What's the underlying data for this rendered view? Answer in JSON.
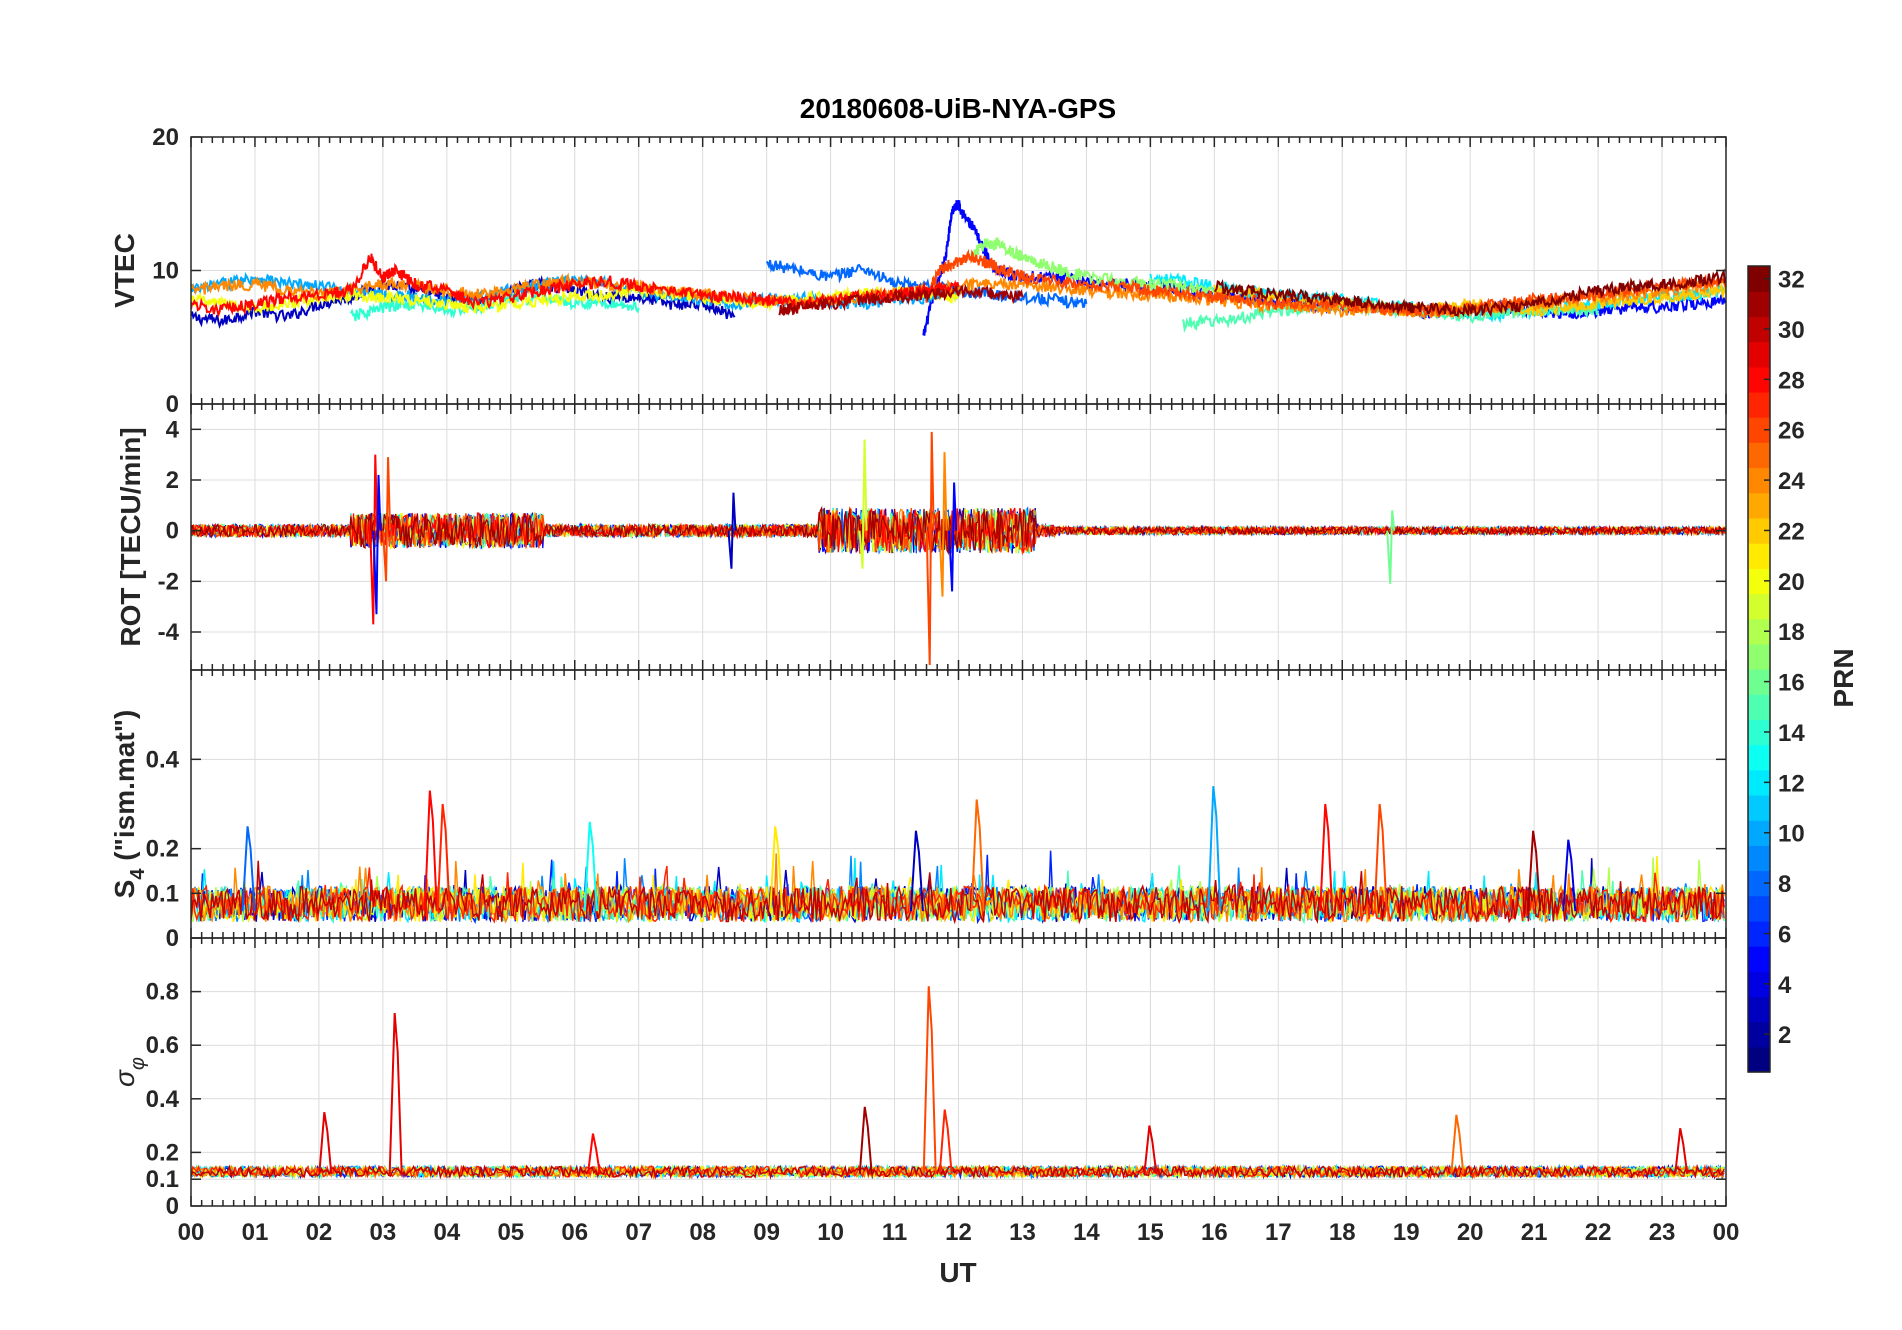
{
  "chart_data": {
    "type": "line",
    "title": "20180608-UiB-NYA-GPS",
    "xlabel": "UT",
    "x_ticks": [
      "00",
      "01",
      "02",
      "03",
      "04",
      "05",
      "06",
      "07",
      "08",
      "09",
      "10",
      "11",
      "12",
      "13",
      "14",
      "15",
      "16",
      "17",
      "18",
      "19",
      "20",
      "21",
      "22",
      "23",
      "00"
    ],
    "xlim": [
      0,
      24
    ],
    "colorbar": {
      "label": "PRN",
      "ticks": [
        "2",
        "4",
        "6",
        "8",
        "10",
        "12",
        "14",
        "16",
        "18",
        "20",
        "22",
        "24",
        "26",
        "28",
        "30",
        "32"
      ],
      "range": [
        1,
        32
      ],
      "colormap": "jet"
    },
    "panels": [
      {
        "id": "vtec",
        "ylabel": "VTEC",
        "ylim": [
          0,
          20
        ],
        "y_ticks": [
          "0",
          "10",
          "20"
        ],
        "y_tick_values": [
          0,
          10,
          20
        ],
        "series": [
          {
            "prn": 3,
            "x": [
              0,
              0.5,
              1,
              1.5,
              2,
              2.5,
              3,
              3.5,
              4,
              4.5,
              5,
              5.5,
              6,
              6.5,
              7,
              7.5,
              8,
              8.5
            ],
            "values": [
              6.5,
              6.2,
              7,
              6.5,
              7.5,
              8,
              9,
              8.5,
              8,
              7.5,
              8.5,
              9,
              8.5,
              8,
              8,
              7.5,
              7.5,
              6.5
            ]
          },
          {
            "prn": 5,
            "x": [
              11.45,
              11.6,
              11.8,
              11.9,
              12.0,
              12.1,
              12.25,
              12.4,
              12.6,
              13,
              13.5,
              14,
              14.5,
              15,
              15.5,
              16,
              16.5,
              17,
              17.5,
              18,
              18.5,
              19,
              19.5,
              20,
              20.5,
              21,
              21.5,
              22,
              22.5,
              23,
              23.5,
              24
            ],
            "values": [
              5,
              8,
              11,
              14.5,
              15,
              14,
              13,
              11.5,
              10,
              9.5,
              9.5,
              9.2,
              9,
              8.8,
              8.5,
              8.2,
              8,
              7.9,
              7.5,
              7.3,
              7.2,
              7,
              6.8,
              7,
              7.2,
              7,
              6.8,
              7,
              7.2,
              7.3,
              7.5,
              7.8
            ]
          },
          {
            "prn": 8,
            "x": [
              9,
              9.5,
              10,
              10.5,
              11,
              11.5,
              12,
              12.5,
              13,
              13.5,
              14
            ],
            "values": [
              10.5,
              10,
              9.5,
              10.2,
              9,
              8.8,
              8.5,
              8.2,
              8,
              7.8,
              7.5
            ]
          },
          {
            "prn": 10,
            "x": [
              0,
              0.5,
              1,
              1.5,
              2,
              2.5,
              3,
              3.5,
              4,
              4.5,
              5,
              5.5,
              6,
              6.5,
              7,
              7.5,
              8,
              8.5,
              9,
              9.5,
              10,
              10.5,
              11,
              11.5,
              12
            ],
            "values": [
              8.5,
              9,
              9.5,
              9,
              8.8,
              8.5,
              8.2,
              8,
              7.8,
              8,
              8.5,
              9,
              9.2,
              9,
              8.5,
              8,
              7.8,
              7.5,
              7.8,
              8,
              7.6,
              7.5,
              7.8,
              8,
              8.2
            ]
          },
          {
            "prn": 12,
            "x": [
              15,
              15.5,
              16,
              16.5,
              17,
              17.5,
              18,
              18.5,
              19,
              19.5,
              20,
              20.5,
              21,
              21.5,
              22,
              22.5,
              23,
              23.5,
              24
            ],
            "values": [
              9.5,
              9.2,
              8.8,
              8.5,
              8.2,
              8,
              7.8,
              7.5,
              7.3,
              7,
              6.8,
              6.7,
              7,
              7.2,
              7.5,
              7.8,
              8,
              8.2,
              8.5
            ]
          },
          {
            "prn": 14,
            "x": [
              2.5,
              3,
              3.5,
              4,
              4.5,
              5,
              5.5,
              6,
              6.5,
              7
            ],
            "values": [
              6.5,
              7.2,
              7.5,
              7,
              7.3,
              7.8,
              8,
              7.5,
              7.6,
              7.2
            ]
          },
          {
            "prn": 15,
            "x": [
              15.5,
              16,
              16.5,
              17,
              17.5,
              18,
              18.5,
              19,
              19.5,
              20,
              20.5,
              21,
              21.5,
              22
            ],
            "values": [
              6,
              6.2,
              6.5,
              7,
              7.2,
              7.5,
              7.2,
              7,
              6.8,
              6.5,
              6.8,
              7,
              7.2,
              7
            ]
          },
          {
            "prn": 17,
            "x": [
              12.2,
              12.4,
              12.6,
              12.8,
              13,
              13.3,
              13.6,
              14,
              14.5,
              15,
              15.5,
              16
            ],
            "values": [
              11,
              12,
              12,
              11.5,
              11,
              10.5,
              10,
              9.5,
              9.2,
              9,
              8.8,
              8.5
            ]
          },
          {
            "prn": 20,
            "x": [
              0,
              0.5,
              1,
              1.5,
              2,
              2.5,
              3,
              3.5,
              4,
              4.5,
              5,
              5.5,
              6,
              6.5,
              7,
              7.5,
              8,
              8.5,
              9,
              9.5,
              10,
              10.5,
              11,
              11.5,
              12
            ],
            "values": [
              7.8,
              7.5,
              7.2,
              7.5,
              8,
              8.2,
              8,
              7.8,
              7.5,
              7.2,
              7.5,
              7.8,
              8,
              8.2,
              8.5,
              8.3,
              8,
              7.8,
              7.5,
              7.8,
              8,
              8.2,
              8.5,
              8.3,
              8
            ]
          },
          {
            "prn": 22,
            "x": [
              16,
              16.5,
              17,
              17.5,
              18,
              18.5,
              19,
              19.5,
              20,
              20.5,
              21,
              21.5,
              22,
              22.5,
              23,
              23.5,
              24
            ],
            "values": [
              8.5,
              8.3,
              8,
              7.8,
              7.5,
              7.2,
              7,
              7.2,
              7.5,
              7.3,
              7,
              7.2,
              7.5,
              7.8,
              8,
              8.2,
              8.5
            ]
          },
          {
            "prn": 24,
            "x": [
              0,
              0.5,
              1,
              1.5,
              2,
              2.5,
              3,
              3.5,
              4,
              4.5,
              5,
              5.5,
              6,
              6.5,
              7,
              7.5,
              8,
              8.5,
              9,
              9.5,
              10,
              10.5,
              11,
              11.5,
              12,
              12.5,
              13,
              13.5,
              14,
              14.5,
              15,
              15.5,
              16,
              16.5,
              17,
              17.5,
              18,
              18.5,
              19,
              19.5,
              20,
              20.5,
              21,
              21.5,
              22,
              22.5,
              23,
              23.5,
              24
            ],
            "values": [
              8.5,
              8.8,
              9,
              8.5,
              8.2,
              8.5,
              9,
              8.8,
              8.5,
              8.2,
              8.5,
              9,
              9.2,
              9,
              8.8,
              8.5,
              8.2,
              8,
              7.8,
              7.5,
              7.8,
              8,
              8.2,
              8.5,
              8.8,
              9,
              9,
              8.8,
              8.5,
              8.3,
              8.2,
              8,
              7.8,
              7.5,
              7.3,
              7.2,
              7,
              7.2,
              7,
              6.8,
              7,
              7.2,
              7.5,
              7.8,
              8,
              8.2,
              8.5,
              8.8,
              9
            ]
          },
          {
            "prn": 26,
            "x": [
              11.5,
              11.7,
              11.9,
              12.1,
              12.3,
              12.5,
              12.7,
              13,
              13.5,
              14,
              14.5,
              15,
              15.5,
              16,
              16.5,
              17,
              17.5,
              18,
              18.5,
              19,
              19.5,
              20,
              20.5,
              21,
              21.5,
              22,
              22.5,
              23,
              23.5,
              24
            ],
            "values": [
              8,
              10,
              10.5,
              11,
              10.8,
              10.5,
              10,
              9.5,
              9.2,
              9,
              8.8,
              8.5,
              8.3,
              8,
              7.8,
              7.5,
              7.5,
              7.3,
              7.2,
              7,
              7,
              7.2,
              7.5,
              7.8,
              8,
              8.2,
              8.5,
              8.8,
              9,
              9.2
            ]
          },
          {
            "prn": 28,
            "x": [
              0,
              0.5,
              1,
              1.5,
              2,
              2.5,
              2.8,
              3,
              3.2,
              3.5,
              4,
              4.5,
              5,
              5.5,
              6,
              6.5,
              7,
              7.5,
              8,
              8.5,
              9,
              9.5,
              10,
              10.5,
              11,
              11.5,
              12
            ],
            "values": [
              7.5,
              7,
              7.5,
              8,
              8.2,
              8.5,
              11,
              9.5,
              10,
              9,
              8.5,
              7.5,
              8,
              8.5,
              9,
              9.2,
              8.8,
              8.5,
              8.2,
              8,
              7.8,
              7.5,
              7.8,
              8,
              8.2,
              8.5,
              8.8
            ]
          },
          {
            "prn": 31,
            "x": [
              9.2,
              9.5,
              10,
              10.5,
              11,
              11.5,
              12,
              12.5,
              13
            ],
            "values": [
              7,
              7.2,
              7.5,
              7.8,
              8,
              8.2,
              8.5,
              8.3,
              8
            ]
          },
          {
            "prn": 32,
            "x": [
              16,
              16.5,
              17,
              17.5,
              18,
              18.5,
              19,
              19.5,
              20,
              20.5,
              21,
              21.5,
              22,
              22.5,
              23,
              23.5,
              24
            ],
            "values": [
              8.8,
              8.5,
              8.2,
              8,
              7.8,
              7.5,
              7.3,
              7.2,
              7,
              7.2,
              7.5,
              8,
              8.5,
              8.8,
              9,
              9.2,
              9.5
            ]
          }
        ]
      },
      {
        "id": "rot",
        "ylabel": "ROT [TECU/min]",
        "ylim": [
          -5.5,
          5
        ],
        "y_ticks": [
          "-4",
          "-2",
          "0",
          "2",
          "4"
        ],
        "y_tick_values": [
          -4,
          -2,
          0,
          2,
          4
        ],
        "spikes": [
          {
            "prn": 28,
            "x": 2.85,
            "values": [
              -3.7,
              3.0
            ]
          },
          {
            "prn": 5,
            "x": 2.9,
            "values": [
              -3.3,
              2.2
            ]
          },
          {
            "prn": 26,
            "x": 3.05,
            "values": [
              -2.0,
              2.9
            ]
          },
          {
            "prn": 19,
            "x": 10.5,
            "values": [
              -1.5,
              3.6
            ]
          },
          {
            "prn": 26,
            "x": 11.55,
            "values": [
              -5.3,
              3.9
            ]
          },
          {
            "prn": 24,
            "x": 11.75,
            "values": [
              -2.6,
              3.1
            ]
          },
          {
            "prn": 5,
            "x": 11.9,
            "values": [
              -2.4,
              1.9
            ]
          },
          {
            "prn": 16,
            "x": 18.75,
            "values": [
              -2.1,
              0.8
            ]
          },
          {
            "prn": 3,
            "x": 8.45,
            "values": [
              -1.5,
              1.5
            ]
          }
        ]
      },
      {
        "id": "s4",
        "ylabel": "S4 (\"ism.mat\")",
        "ylabel_main": "S",
        "ylabel_sub": "4",
        "ylabel_rest": " (\"ism.mat\")",
        "ylim": [
          0,
          0.6
        ],
        "y_ticks": [
          "0",
          "0.1",
          "0.2",
          "0.4"
        ],
        "y_tick_values": [
          0,
          0.1,
          0.2,
          0.4
        ],
        "peaks": [
          {
            "prn": 28,
            "x": 3.75,
            "value": 0.33
          },
          {
            "prn": 27,
            "x": 3.95,
            "value": 0.3
          },
          {
            "prn": 8,
            "x": 0.9,
            "value": 0.25
          },
          {
            "prn": 13,
            "x": 6.25,
            "value": 0.26
          },
          {
            "prn": 21,
            "x": 9.15,
            "value": 0.25
          },
          {
            "prn": 25,
            "x": 12.3,
            "value": 0.31
          },
          {
            "prn": 10,
            "x": 16.0,
            "value": 0.34
          },
          {
            "prn": 28,
            "x": 17.75,
            "value": 0.3
          },
          {
            "prn": 26,
            "x": 18.6,
            "value": 0.3
          },
          {
            "prn": 31,
            "x": 21.0,
            "value": 0.24
          },
          {
            "prn": 4,
            "x": 21.55,
            "value": 0.22
          },
          {
            "prn": 3,
            "x": 11.35,
            "value": 0.24
          }
        ]
      },
      {
        "id": "sigma_phi",
        "ylabel": "σφ",
        "ylabel_main": "σ",
        "ylabel_sub": "φ",
        "ylim": [
          0,
          1.0
        ],
        "y_ticks": [
          "0",
          "0.1",
          "0.2",
          "0.4",
          "0.6",
          "0.8"
        ],
        "y_tick_values": [
          0,
          0.1,
          0.2,
          0.4,
          0.6,
          0.8
        ],
        "peaks": [
          {
            "prn": 29,
            "x": 2.1,
            "value": 0.35
          },
          {
            "prn": 29,
            "x": 3.2,
            "value": 0.72
          },
          {
            "prn": 26,
            "x": 11.55,
            "value": 0.82
          },
          {
            "prn": 27,
            "x": 11.8,
            "value": 0.36
          },
          {
            "prn": 31,
            "x": 10.55,
            "value": 0.37
          },
          {
            "prn": 29,
            "x": 15.0,
            "value": 0.3
          },
          {
            "prn": 25,
            "x": 19.8,
            "value": 0.34
          },
          {
            "prn": 29,
            "x": 23.3,
            "value": 0.29
          },
          {
            "prn": 28,
            "x": 6.3,
            "value": 0.27
          }
        ]
      }
    ]
  }
}
